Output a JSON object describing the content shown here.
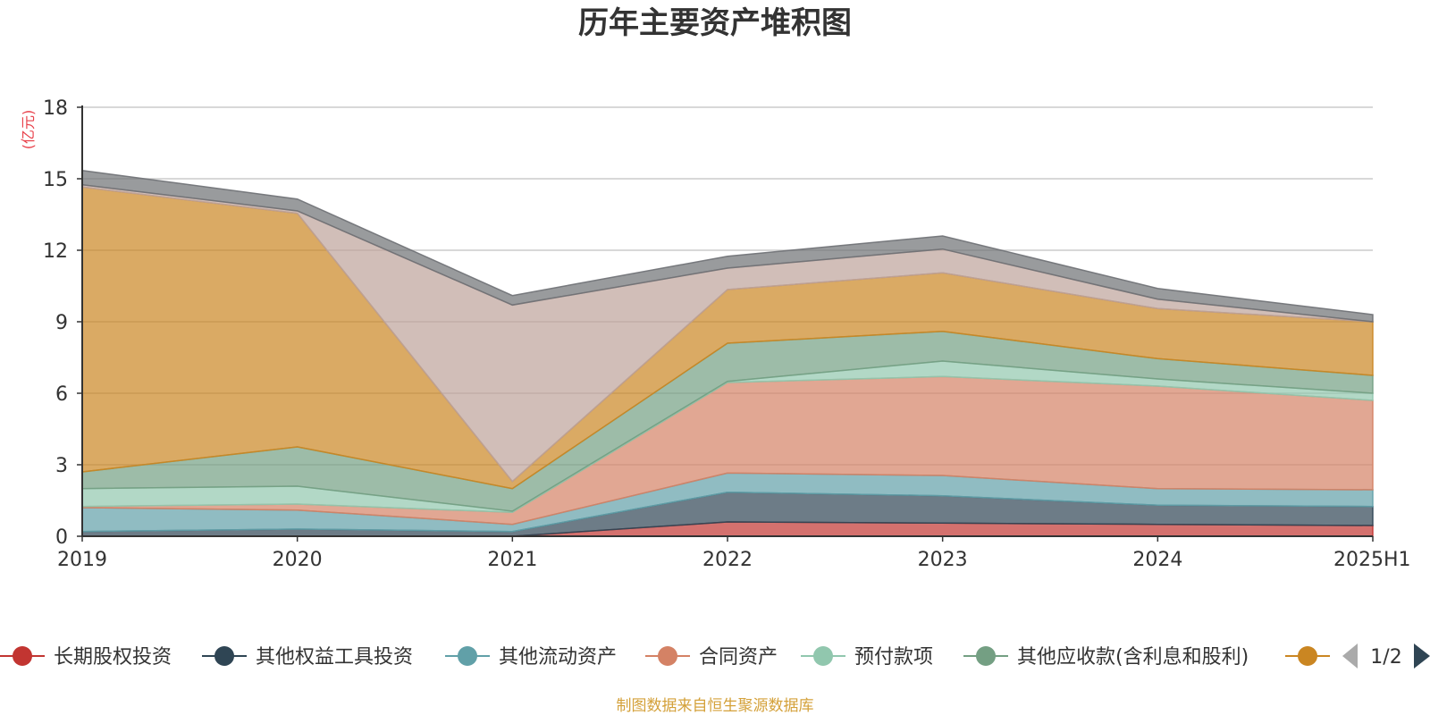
{
  "chart_data": {
    "type": "area",
    "stacked": true,
    "title": "历年主要资产堆积图",
    "unit_label": "(亿元)",
    "categories": [
      "2019",
      "2020",
      "2021",
      "2022",
      "2023",
      "2024",
      "2025H1"
    ],
    "ylim": [
      0,
      18
    ],
    "yticks": [
      "0",
      "3",
      "6",
      "9",
      "12",
      "15",
      "18"
    ],
    "grid": true,
    "series": [
      {
        "name": "长期股权投资",
        "color": "#c23531",
        "values": [
          0.0,
          0.0,
          0.0,
          0.6,
          0.55,
          0.5,
          0.45
        ]
      },
      {
        "name": "其他权益工具投资",
        "color": "#2f4554",
        "values": [
          0.2,
          0.3,
          0.2,
          1.25,
          1.15,
          0.8,
          0.8
        ]
      },
      {
        "name": "其他流动资产",
        "color": "#61a0a8",
        "values": [
          1.0,
          0.8,
          0.3,
          0.8,
          0.85,
          0.7,
          0.7
        ]
      },
      {
        "name": "合同资产",
        "color": "#d48265",
        "values": [
          0.05,
          0.25,
          0.5,
          3.8,
          4.15,
          4.3,
          3.75
        ]
      },
      {
        "name": "预付款项",
        "color": "#91c7ae",
        "values": [
          0.75,
          0.75,
          0.05,
          0.05,
          0.65,
          0.3,
          0.3
        ]
      },
      {
        "name": "其他应收款(含利息和股利)",
        "color": "#749f83",
        "values": [
          0.7,
          1.65,
          0.95,
          1.6,
          1.25,
          0.85,
          0.75
        ]
      },
      {
        "name": "",
        "color": "#ca8622",
        "values": [
          11.95,
          9.8,
          0.3,
          2.25,
          2.45,
          2.1,
          2.25
        ]
      },
      {
        "name": "",
        "color": "#bda29a",
        "values": [
          0.1,
          0.1,
          7.4,
          0.9,
          1.0,
          0.4,
          0.0
        ]
      },
      {
        "name": "",
        "color": "#6e7074",
        "values": [
          0.6,
          0.5,
          0.4,
          0.5,
          0.55,
          0.45,
          0.3
        ]
      }
    ],
    "legend": {
      "position": "bottom",
      "page": "1/2"
    },
    "source_note": "制图数据来自恒生聚源数据库"
  }
}
